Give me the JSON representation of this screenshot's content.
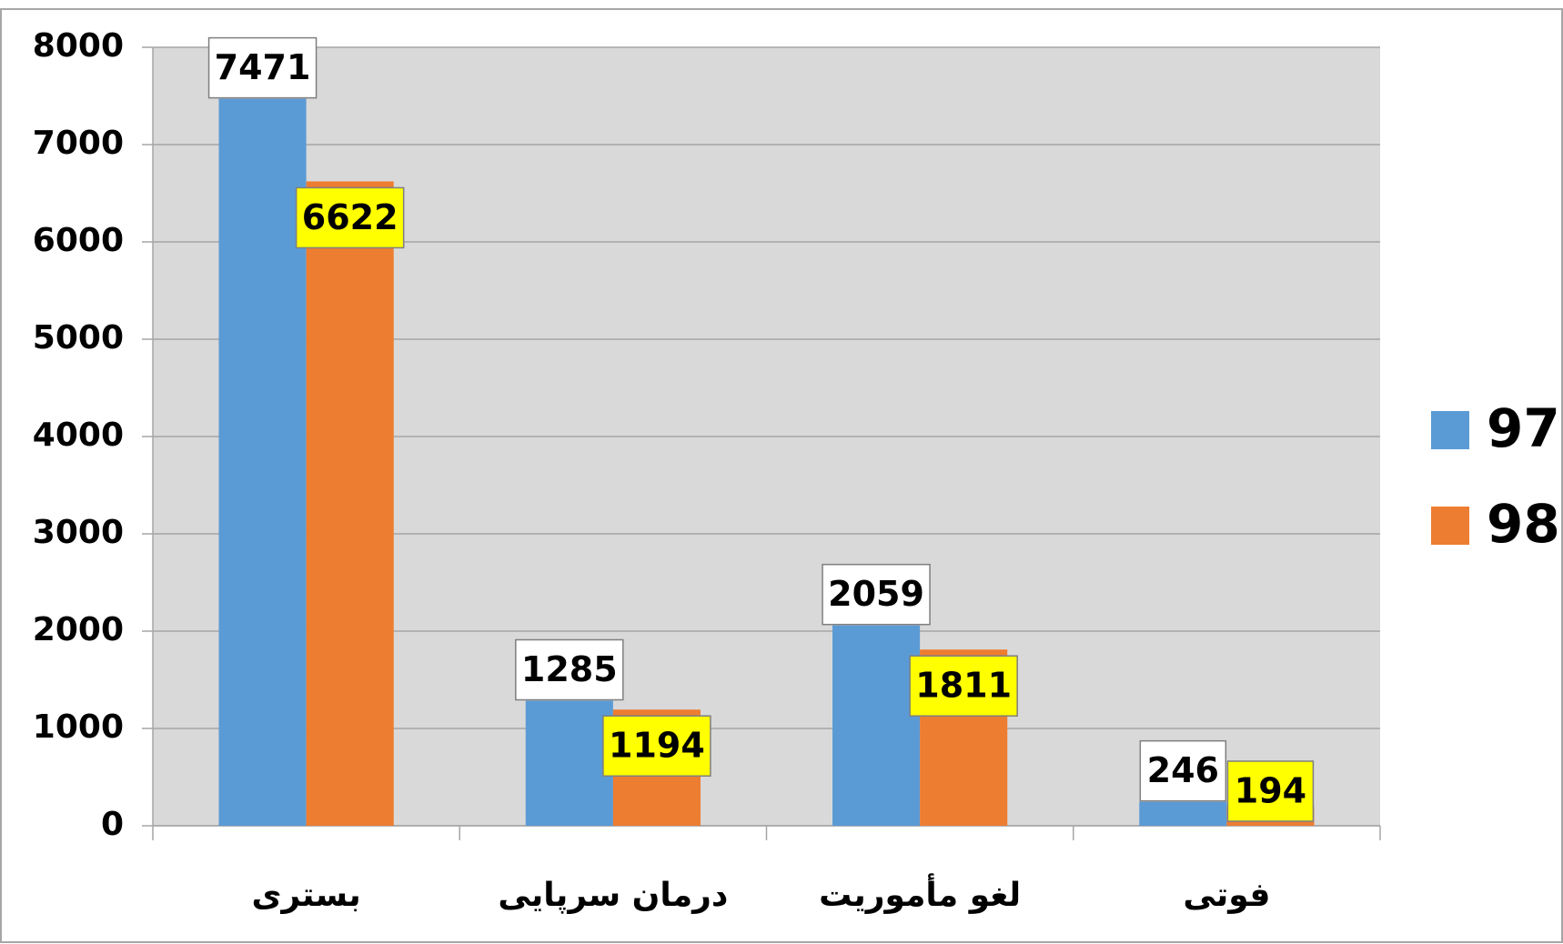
{
  "chart_data": {
    "type": "bar",
    "categories": [
      "بستری",
      "درمان سرپایی",
      "لغو مأموریت",
      "فوتی"
    ],
    "series": [
      {
        "name": "97",
        "color": "#5b9bd5",
        "values": [
          7471,
          1285,
          2059,
          246
        ]
      },
      {
        "name": "98",
        "color": "#ed7d31",
        "values": [
          6622,
          1194,
          1811,
          194
        ]
      }
    ],
    "ylim": [
      0,
      8000
    ],
    "yticks": [
      0,
      1000,
      2000,
      3000,
      4000,
      5000,
      6000,
      7000,
      8000
    ],
    "grid": true,
    "legend": "right"
  }
}
